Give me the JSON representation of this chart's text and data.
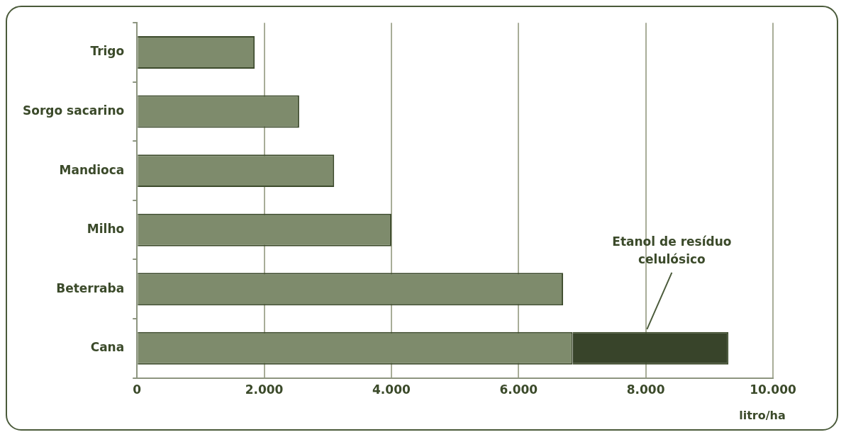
{
  "chart_data": {
    "type": "bar",
    "orientation": "horizontal",
    "stacked": true,
    "categories": [
      "Trigo",
      "Sorgo sacarino",
      "Mandioca",
      "Milho",
      "Beterraba",
      "Cana"
    ],
    "xlabel": "litro/ha",
    "xlim": [
      0,
      10000
    ],
    "xticks": [
      {
        "value": 0,
        "label": "0"
      },
      {
        "value": 2000,
        "label": "2.000"
      },
      {
        "value": 4000,
        "label": "4.000"
      },
      {
        "value": 6000,
        "label": "6.000"
      },
      {
        "value": 8000,
        "label": "8.000"
      },
      {
        "value": 10000,
        "label": "10.000"
      }
    ],
    "grid": "x",
    "legend": false,
    "series": [
      {
        "color": "#7e8b6c",
        "values": [
          1850,
          2550,
          3100,
          4000,
          6700,
          6850
        ]
      },
      {
        "name": "Etanol de resíduo celulósico",
        "color": "#38442a",
        "values": [
          null,
          null,
          null,
          null,
          null,
          2450
        ]
      }
    ]
  }
}
